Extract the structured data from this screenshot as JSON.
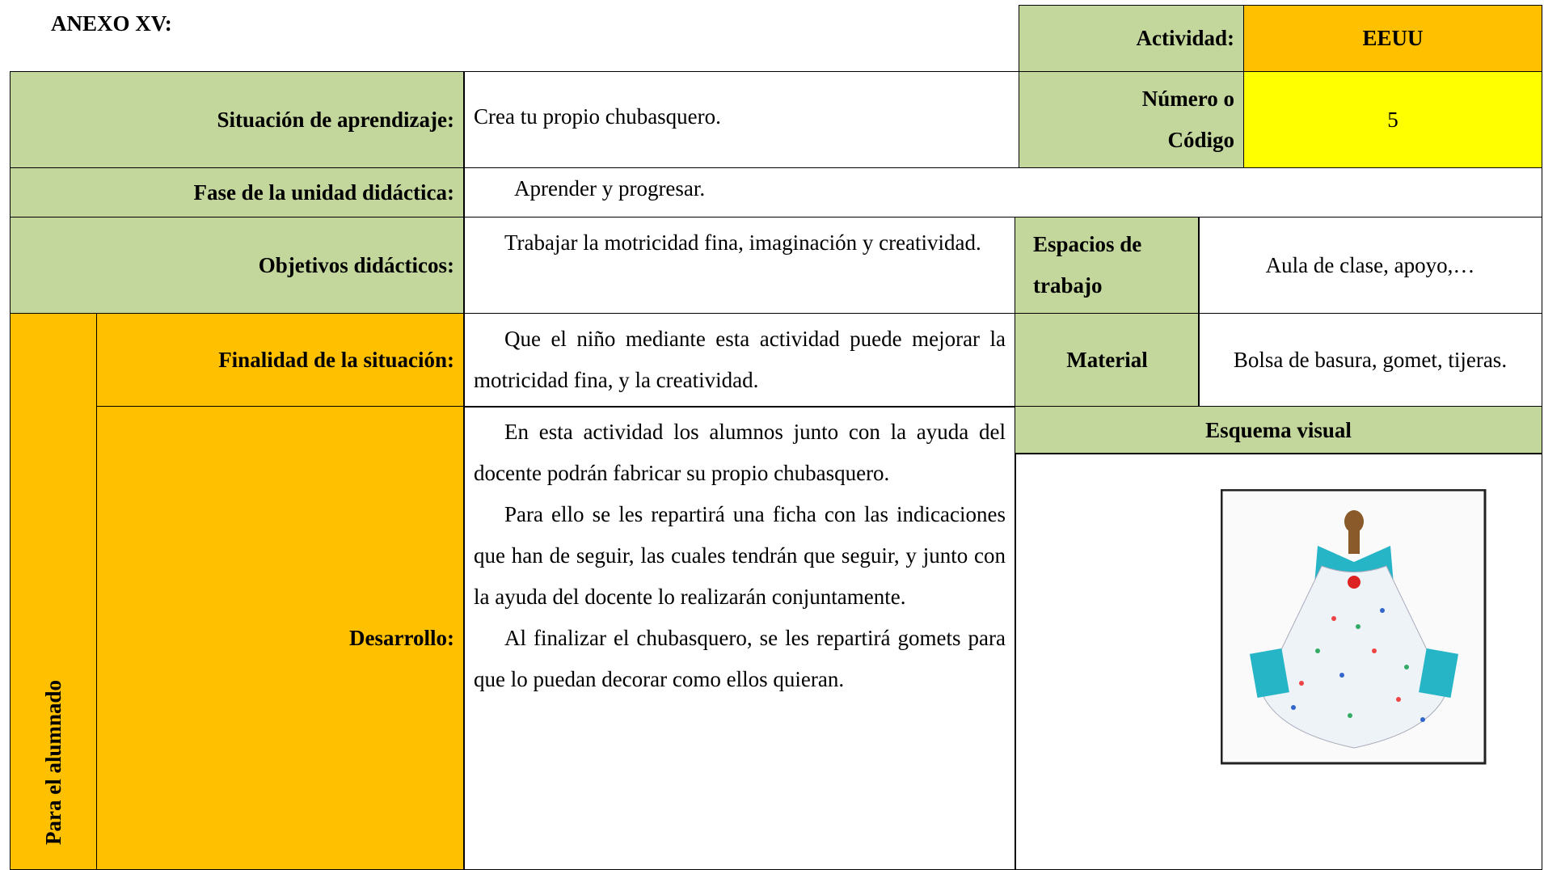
{
  "header": {
    "title": "ANEXO XV:"
  },
  "activity": {
    "label": "Actividad:",
    "value": "EEUU"
  },
  "code": {
    "label": "Número o Código",
    "value": "5"
  },
  "situation": {
    "label": "Situación de aprendizaje:",
    "value": "Crea tu propio chubasquero."
  },
  "phase": {
    "label": "Fase de la unidad didáctica:",
    "value": "Aprender y progresar."
  },
  "objectives": {
    "label": "Objetivos didácticos:",
    "value": "Trabajar la motricidad fina, imaginación y creatividad."
  },
  "spaces": {
    "label": "Espacios de trabajo",
    "value": "Aula de clase, apoyo,…"
  },
  "audience": "Para el alumnado",
  "purpose": {
    "label": "Finalidad de la situación:",
    "value": "Que el niño mediante esta actividad puede mejorar la motricidad fina, y la creatividad."
  },
  "material": {
    "label": "Material",
    "value": "Bolsa de basura, gomet, tijeras."
  },
  "development": {
    "label": "Desarrollo:",
    "paragraphs": [
      "En esta actividad los alumnos junto con la ayuda del docente podrán fabricar su propio chubasquero.",
      "Para ello se les repartirá una ficha con las indicaciones que han de seguir, las cuales tendrán que seguir, y junto  con la ayuda del docente lo realizarán conjuntamente.",
      "Al finalizar el chubasquero,  se les repartirá gomets para que lo puedan decorar como ellos quieran."
    ]
  },
  "visual": {
    "label": "Esquema visual"
  }
}
